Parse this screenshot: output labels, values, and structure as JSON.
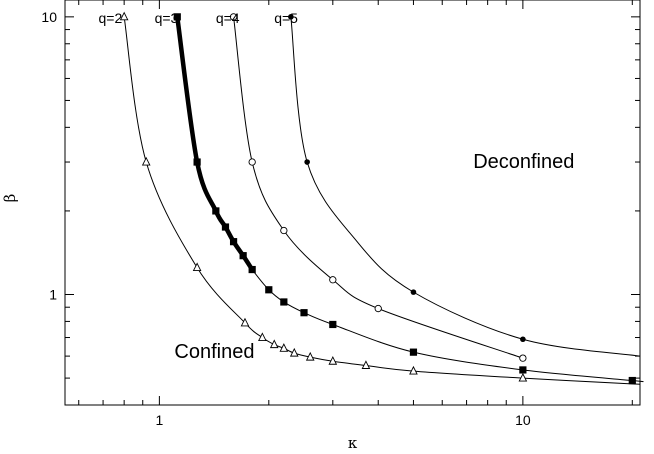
{
  "chart_data": {
    "type": "line",
    "title": "",
    "xlabel": "κ",
    "ylabel": "β",
    "x_scale": "log",
    "y_scale": "log",
    "xlim": [
      0.55,
      21
    ],
    "ylim": [
      0.4,
      11.5
    ],
    "x_ticks": [
      1,
      10
    ],
    "x_tick_labels": [
      "1",
      "10"
    ],
    "y_ticks": [
      1,
      10
    ],
    "y_tick_labels": [
      "1",
      "10"
    ],
    "grid": false,
    "legend": "none",
    "series": [
      {
        "name": "q=2",
        "marker": "open-triangle",
        "line_weight": "thin",
        "x": [
          0.8,
          0.92,
          1.27,
          1.72,
          1.92,
          2.07,
          2.2,
          2.35,
          2.6,
          3.0,
          3.7,
          5.0,
          10.0,
          21.0
        ],
        "y": [
          10.0,
          3.0,
          1.25,
          0.79,
          0.7,
          0.66,
          0.64,
          0.615,
          0.595,
          0.575,
          0.555,
          0.53,
          0.5,
          0.475
        ],
        "marked": [
          true,
          true,
          true,
          true,
          true,
          true,
          true,
          true,
          true,
          true,
          true,
          true,
          true,
          false
        ]
      },
      {
        "name": "q=3",
        "marker": "filled-square",
        "line_weight": "thick-to-1.8",
        "x": [
          1.12,
          1.27,
          1.43,
          1.52,
          1.6,
          1.7,
          1.8,
          2.0,
          2.2,
          2.5,
          3.0,
          5.0,
          10.0,
          20.0,
          21.0
        ],
        "y": [
          10.0,
          3.0,
          2.0,
          1.75,
          1.55,
          1.38,
          1.23,
          1.04,
          0.94,
          0.86,
          0.78,
          0.62,
          0.535,
          0.49,
          0.487
        ],
        "marked": [
          true,
          true,
          true,
          true,
          true,
          true,
          true,
          true,
          true,
          true,
          true,
          true,
          true,
          true,
          false
        ]
      },
      {
        "name": "q=4",
        "marker": "open-circle",
        "line_weight": "thin",
        "x": [
          1.6,
          1.8,
          2.2,
          3.0,
          4.0,
          10.0
        ],
        "y": [
          10.0,
          3.0,
          1.7,
          1.13,
          0.89,
          0.59
        ],
        "marked": [
          true,
          true,
          true,
          true,
          true,
          true
        ]
      },
      {
        "name": "q=5",
        "marker": "filled-circle",
        "line_weight": "thin",
        "x": [
          2.3,
          2.55,
          3.5,
          5.0,
          10.0,
          21.0
        ],
        "y": [
          10.0,
          3.0,
          1.55,
          1.02,
          0.69,
          0.6
        ],
        "marked": [
          true,
          true,
          false,
          true,
          true,
          false
        ]
      }
    ],
    "annotations": [
      {
        "text": "q=2",
        "at": [
          0.68,
          10.0
        ]
      },
      {
        "text": "q=3",
        "at": [
          0.97,
          10.0
        ]
      },
      {
        "text": "q=4",
        "at": [
          1.43,
          10.0
        ]
      },
      {
        "text": "q=5",
        "at": [
          2.07,
          10.0
        ]
      },
      {
        "text": "Deconfined",
        "at": [
          7.3,
          3.0
        ]
      },
      {
        "text": "Confined",
        "at": [
          1.1,
          0.62
        ]
      }
    ]
  }
}
